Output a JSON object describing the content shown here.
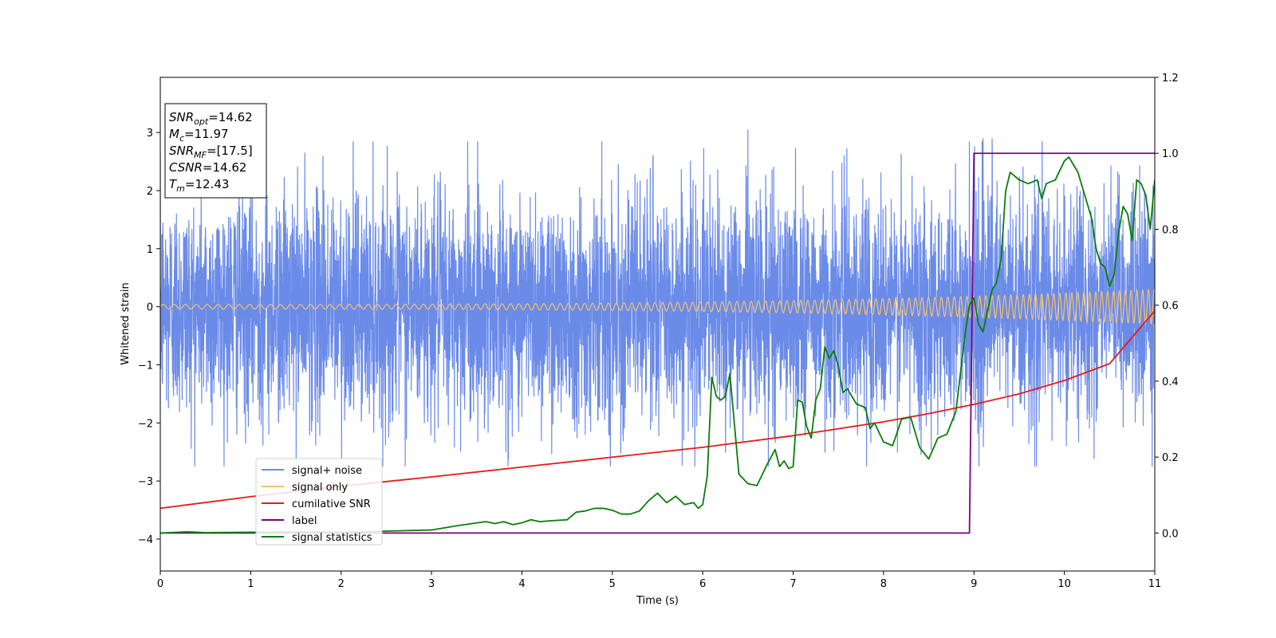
{
  "chart_data": {
    "type": "line",
    "xlabel": "Time (s)",
    "ylabel": "Whitened strain",
    "xlim": [
      0,
      11
    ],
    "ylim": [
      -4.55,
      3.95
    ],
    "y2lim": [
      -0.1,
      1.2
    ],
    "grid": false,
    "legend_position": "lower-left",
    "x_ticks": [
      0,
      1,
      2,
      3,
      4,
      5,
      6,
      7,
      8,
      9,
      10,
      11
    ],
    "y_ticks": [
      -4,
      -3,
      -2,
      -1,
      0,
      1,
      2,
      3
    ],
    "y2_ticks": [
      0.0,
      0.2,
      0.4,
      0.6,
      0.8,
      1.0,
      1.2
    ],
    "annotation_box": [
      {
        "base": "SNR",
        "sub": "opt",
        "value": "=14.62"
      },
      {
        "base": "M",
        "sub": "c",
        "value": "=11.97"
      },
      {
        "base": "SNR",
        "sub": "MF",
        "value": "=[17.5]"
      },
      {
        "base": "CSNR",
        "sub": "",
        "value": "=14.62"
      },
      {
        "base": "T",
        "sub": "m",
        "value": "=12.43"
      }
    ],
    "series": [
      {
        "name": "signal+ noise",
        "axis": "left",
        "color": "#6b8be8",
        "kind": "noise",
        "amplitude_range": [
          -2.85,
          3.05
        ],
        "spikes": [
          [
            5.45,
            -3.9
          ],
          [
            5.45,
            2.6
          ],
          [
            6.5,
            3.05
          ],
          [
            9.1,
            2.9
          ],
          [
            9.2,
            2.9
          ],
          [
            8.95,
            2.85
          ],
          [
            1.8,
            2.6
          ],
          [
            3.4,
            2.85
          ]
        ]
      },
      {
        "name": "signal only",
        "axis": "left",
        "color": "#f5c16c",
        "kind": "chirp",
        "amplitude_start": 0.04,
        "amplitude_end": 0.3
      },
      {
        "name": "cumilative SNR",
        "axis": "left",
        "color": "#e8191b",
        "x": [
          0,
          1,
          2,
          3,
          4,
          5,
          6,
          7,
          7.5,
          8,
          8.5,
          9,
          9.5,
          10,
          10.5,
          11
        ],
        "y": [
          -3.47,
          -3.27,
          -3.09,
          -2.93,
          -2.76,
          -2.59,
          -2.42,
          -2.22,
          -2.1,
          -1.98,
          -1.84,
          -1.68,
          -1.5,
          -1.27,
          -0.98,
          -0.07
        ]
      },
      {
        "name": "label",
        "axis": "right",
        "color": "#800080",
        "x": [
          0,
          8.95,
          9.0,
          11
        ],
        "y": [
          0,
          0,
          1.0,
          1.0
        ]
      },
      {
        "name": "signal statistics",
        "axis": "right",
        "color": "#0a7d0a",
        "x": [
          0,
          0.3,
          0.5,
          1.0,
          1.5,
          2.0,
          2.5,
          3.0,
          3.3,
          3.6,
          3.7,
          3.8,
          3.9,
          4.0,
          4.1,
          4.2,
          4.3,
          4.5,
          4.6,
          4.7,
          4.8,
          4.9,
          5.0,
          5.1,
          5.2,
          5.3,
          5.4,
          5.45,
          5.5,
          5.6,
          5.65,
          5.7,
          5.8,
          5.9,
          5.95,
          6.0,
          6.05,
          6.1,
          6.15,
          6.2,
          6.25,
          6.3,
          6.4,
          6.5,
          6.6,
          6.7,
          6.8,
          6.85,
          6.9,
          6.95,
          7.0,
          7.05,
          7.1,
          7.15,
          7.2,
          7.25,
          7.3,
          7.35,
          7.4,
          7.45,
          7.5,
          7.55,
          7.6,
          7.7,
          7.8,
          7.85,
          7.9,
          8.0,
          8.1,
          8.2,
          8.3,
          8.35,
          8.4,
          8.5,
          8.6,
          8.7,
          8.8,
          8.9,
          8.95,
          9.0,
          9.05,
          9.1,
          9.2,
          9.25,
          9.3,
          9.35,
          9.4,
          9.45,
          9.5,
          9.6,
          9.7,
          9.75,
          9.8,
          9.9,
          10.0,
          10.05,
          10.1,
          10.15,
          10.2,
          10.3,
          10.35,
          10.4,
          10.45,
          10.5,
          10.55,
          10.6,
          10.65,
          10.7,
          10.75,
          10.8,
          10.85,
          10.9,
          10.95,
          11.0
        ],
        "y": [
          0.0,
          0.003,
          0.001,
          0.002,
          0.003,
          0.002,
          0.005,
          0.008,
          0.02,
          0.03,
          0.025,
          0.03,
          0.022,
          0.027,
          0.035,
          0.03,
          0.032,
          0.035,
          0.055,
          0.058,
          0.065,
          0.065,
          0.06,
          0.05,
          0.05,
          0.058,
          0.085,
          0.095,
          0.105,
          0.08,
          0.088,
          0.097,
          0.075,
          0.08,
          0.065,
          0.075,
          0.15,
          0.41,
          0.36,
          0.35,
          0.36,
          0.42,
          0.155,
          0.13,
          0.125,
          0.175,
          0.22,
          0.175,
          0.19,
          0.17,
          0.175,
          0.35,
          0.345,
          0.28,
          0.25,
          0.35,
          0.38,
          0.49,
          0.46,
          0.48,
          0.44,
          0.37,
          0.38,
          0.34,
          0.33,
          0.275,
          0.29,
          0.24,
          0.23,
          0.3,
          0.305,
          0.265,
          0.225,
          0.195,
          0.25,
          0.26,
          0.32,
          0.52,
          0.6,
          0.62,
          0.55,
          0.53,
          0.64,
          0.66,
          0.72,
          0.9,
          0.95,
          0.94,
          0.93,
          0.92,
          0.93,
          0.88,
          0.92,
          0.93,
          0.98,
          0.99,
          0.97,
          0.95,
          0.91,
          0.83,
          0.75,
          0.71,
          0.7,
          0.65,
          0.68,
          0.79,
          0.86,
          0.84,
          0.77,
          0.93,
          0.92,
          0.89,
          0.8,
          0.93
        ]
      }
    ]
  }
}
